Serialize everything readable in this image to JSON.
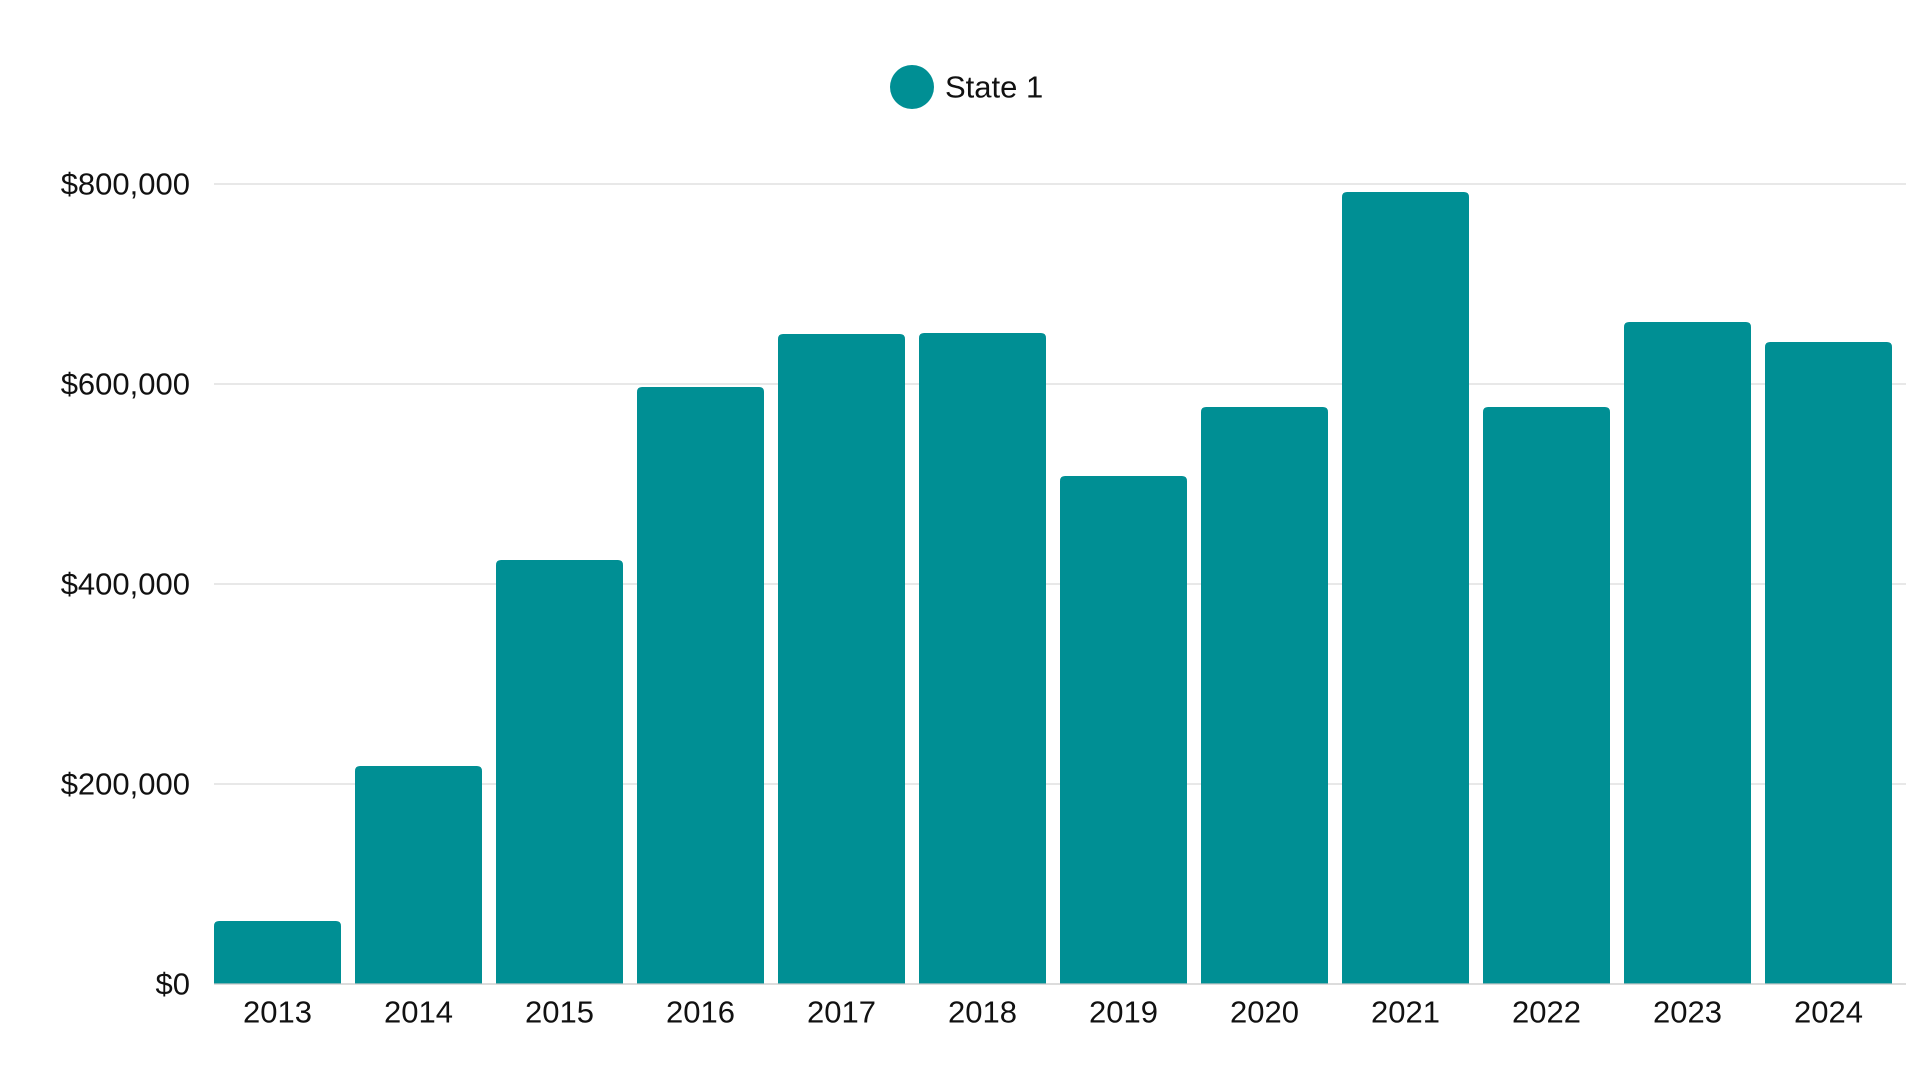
{
  "chart_data": {
    "type": "bar",
    "title": "",
    "xlabel": "",
    "ylabel": "",
    "categories": [
      "2013",
      "2014",
      "2015",
      "2016",
      "2017",
      "2018",
      "2019",
      "2020",
      "2021",
      "2022",
      "2023",
      "2024"
    ],
    "series": [
      {
        "name": "State 1",
        "color": "#008f94",
        "values": [
          63000,
          218000,
          424000,
          597000,
          650000,
          651000,
          508000,
          577000,
          792000,
          577000,
          662000,
          642000
        ]
      }
    ],
    "ylim": [
      0,
      800000
    ],
    "yticks": [
      0,
      200000,
      400000,
      600000,
      800000
    ],
    "ytick_labels": [
      "$0",
      "$200,000",
      "$400,000",
      "$600,000",
      "$800,000"
    ],
    "grid": true,
    "legend_position": "top-center"
  }
}
